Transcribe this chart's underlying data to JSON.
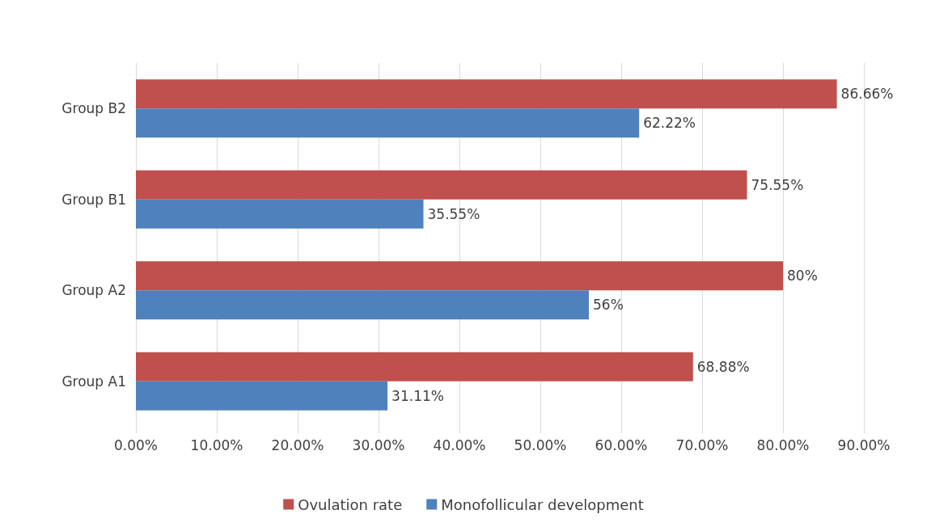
{
  "chart_data": {
    "type": "bar",
    "orientation": "horizontal",
    "categories": [
      "Group B2",
      "Group B1",
      "Group A2",
      "Group A1"
    ],
    "series": [
      {
        "name": "Ovulation rate",
        "color": "#c0504d",
        "values": [
          86.66,
          75.55,
          80,
          68.88
        ],
        "value_labels": [
          "86.66%",
          "75.55%",
          "80%",
          "68.88%"
        ]
      },
      {
        "name": "Monofollicular development",
        "color": "#4f81bd",
        "values": [
          62.22,
          35.55,
          56,
          31.11
        ],
        "value_labels": [
          "62.22%",
          "35.55%",
          "56%",
          "31.11%"
        ]
      }
    ],
    "xlim": [
      0,
      90
    ],
    "xticks": [
      {
        "value": 0,
        "label": "0.00%"
      },
      {
        "value": 10,
        "label": "10.00%"
      },
      {
        "value": 20,
        "label": "20.00%"
      },
      {
        "value": 30,
        "label": "30.00%"
      },
      {
        "value": 40,
        "label": "40.00%"
      },
      {
        "value": 50,
        "label": "50.00%"
      },
      {
        "value": 60,
        "label": "60.00%"
      },
      {
        "value": 70,
        "label": "70.00%"
      },
      {
        "value": 80,
        "label": "80.00%"
      },
      {
        "value": 90,
        "label": "90.00%"
      }
    ],
    "grid": "x",
    "legend": "bottom"
  }
}
